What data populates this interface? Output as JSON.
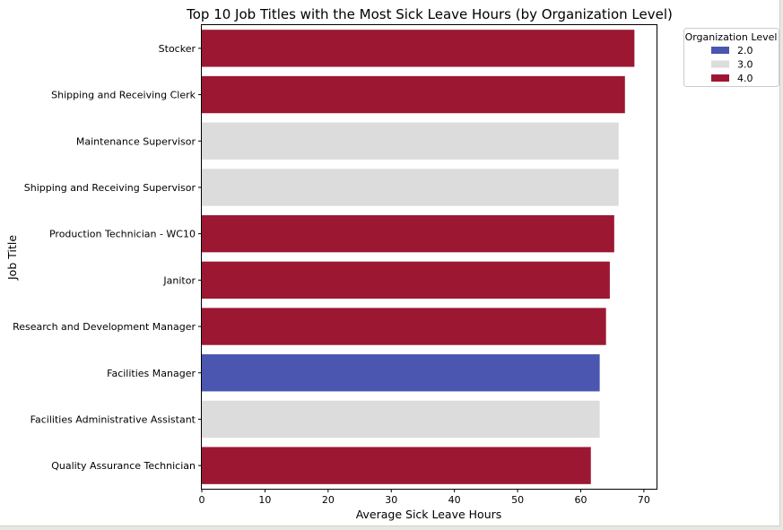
{
  "chart_data": {
    "type": "bar",
    "orientation": "horizontal",
    "title": "Top 10 Job Titles with the Most Sick Leave Hours (by Organization Level)",
    "xlabel": "Average Sick Leave Hours",
    "ylabel": "Job Title",
    "xlim": [
      0,
      72
    ],
    "xticks": [
      "0",
      "10",
      "20",
      "30",
      "40",
      "50",
      "60",
      "70"
    ],
    "grid": false,
    "legend": {
      "title": "Organization Level",
      "placement": "top-right outside",
      "items": [
        {
          "label": "2.0",
          "color": "#4a56b0"
        },
        {
          "label": "3.0",
          "color": "#dcdcdc"
        },
        {
          "label": "4.0",
          "color": "#9c1832"
        }
      ]
    },
    "bars": [
      {
        "category": "Stocker",
        "value": 68.5,
        "level": "4.0"
      },
      {
        "category": "Shipping and Receiving Clerk",
        "value": 67.0,
        "level": "4.0"
      },
      {
        "category": "Maintenance Supervisor",
        "value": 66.0,
        "level": "3.0"
      },
      {
        "category": "Shipping and Receiving Supervisor",
        "value": 66.0,
        "level": "3.0"
      },
      {
        "category": "Production Technician - WC10",
        "value": 65.3,
        "level": "4.0"
      },
      {
        "category": "Janitor",
        "value": 64.6,
        "level": "4.0"
      },
      {
        "category": "Research and Development Manager",
        "value": 64.0,
        "level": "4.0"
      },
      {
        "category": "Facilities Manager",
        "value": 63.0,
        "level": "2.0"
      },
      {
        "category": "Facilities Administrative Assistant",
        "value": 63.0,
        "level": "3.0"
      },
      {
        "category": "Quality Assurance Technician",
        "value": 61.6,
        "level": "4.0"
      }
    ]
  }
}
